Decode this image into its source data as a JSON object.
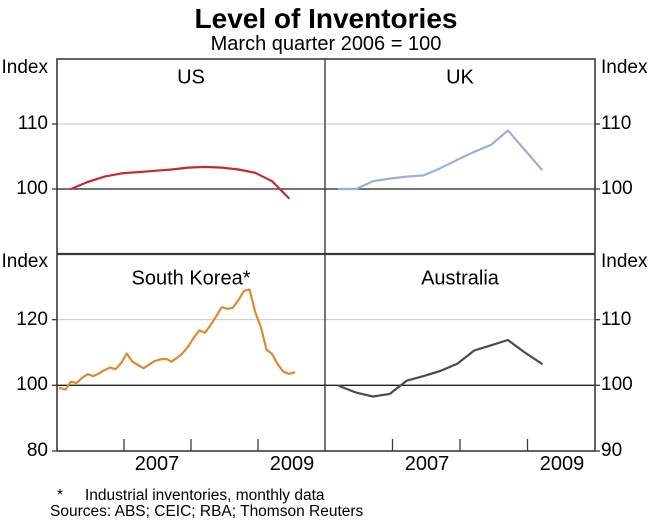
{
  "title": "Level of Inventories",
  "subtitle": "March quarter 2006 = 100",
  "axis_labels": {
    "index": "Index"
  },
  "left_axis": {
    "top": [
      "110",
      "100"
    ],
    "bottom": [
      "120",
      "100",
      "80"
    ]
  },
  "right_axis": {
    "top": [
      "110",
      "100"
    ],
    "bottom": [
      "110",
      "100",
      "90"
    ]
  },
  "x_axis": {
    "left": [
      "2007",
      "2009"
    ],
    "right": [
      "2007",
      "2009"
    ]
  },
  "footnote_marker": "*",
  "footnote": "Industrial inventories, monthly data",
  "sources": "Sources: ABS; CEIC; RBA; Thomson Reuters",
  "colors": {
    "frame": "#3a3a3a",
    "gridline_light": "#c8c8c8",
    "baseline": "#222222",
    "us_line": "#c02c31",
    "uk_line": "#a3abd9",
    "south_korea_line": "#de8a31",
    "australia_line": "#4b4b4b",
    "text": "#000000"
  },
  "chart_data": {
    "type": "line",
    "title": "Level of Inventories",
    "subtitle": "March quarter 2006 = 100",
    "layout": "2x2 panels, shared x axis 2006-2010, year ticks at 2007/2008/2009, gridlines light at upper tick, dark reference line at 100",
    "x_range": [
      2006,
      2010
    ],
    "x_year_ticks": [
      2007,
      2008,
      2009
    ],
    "panels": [
      {
        "name": "US",
        "row": 0,
        "col": 0,
        "ylim": [
          90,
          120
        ],
        "yticks": [
          110,
          100
        ],
        "gridlines_light": [
          110
        ],
        "baseline": 100,
        "axis_side": "left",
        "series": {
          "frequency": "quarterly",
          "color": "#c02c31",
          "x": [
            2006.21,
            2006.46,
            2006.71,
            2006.96,
            2007.21,
            2007.46,
            2007.71,
            2007.96,
            2008.21,
            2008.46,
            2008.71,
            2008.96,
            2009.21,
            2009.46
          ],
          "values": [
            100,
            101.1,
            101.9,
            102.4,
            102.6,
            102.8,
            103.0,
            103.3,
            103.4,
            103.3,
            103.0,
            102.5,
            101.2,
            98.6
          ]
        }
      },
      {
        "name": "UK",
        "row": 0,
        "col": 1,
        "ylim": [
          90,
          120
        ],
        "yticks": [
          110,
          100
        ],
        "gridlines_light": [
          110
        ],
        "baseline": 100,
        "axis_side": "right",
        "series": {
          "frequency": "quarterly",
          "color": "#a3abd9",
          "x": [
            2006.21,
            2006.46,
            2006.71,
            2006.96,
            2007.21,
            2007.46,
            2007.71,
            2007.96,
            2008.21,
            2008.46,
            2008.71,
            2008.96,
            2009.21
          ],
          "values": [
            100,
            100,
            101.2,
            101.6,
            101.9,
            102.1,
            103.2,
            104.5,
            105.7,
            106.8,
            109.0,
            106.0,
            103.0
          ]
        }
      },
      {
        "name": "South Korea*",
        "row": 1,
        "col": 0,
        "ylim": [
          80,
          140
        ],
        "yticks": [
          120,
          100,
          80
        ],
        "gridlines_light": [
          120
        ],
        "baseline": 100,
        "axis_side": "left",
        "series": {
          "frequency": "monthly",
          "color": "#de8a31",
          "x": [
            2006.042,
            2006.125,
            2006.208,
            2006.292,
            2006.375,
            2006.458,
            2006.542,
            2006.625,
            2006.708,
            2006.792,
            2006.875,
            2006.958,
            2007.042,
            2007.125,
            2007.208,
            2007.292,
            2007.375,
            2007.458,
            2007.542,
            2007.625,
            2007.708,
            2007.792,
            2007.875,
            2007.958,
            2008.042,
            2008.125,
            2008.208,
            2008.292,
            2008.375,
            2008.458,
            2008.542,
            2008.625,
            2008.708,
            2008.792,
            2008.875,
            2008.958,
            2009.042,
            2009.125,
            2009.208,
            2009.292,
            2009.375,
            2009.458,
            2009.542
          ],
          "values": [
            99.2,
            98.7,
            101.1,
            100.7,
            102.3,
            103.4,
            102.8,
            103.6,
            104.6,
            105.4,
            104.9,
            106.8,
            109.7,
            107.2,
            106.2,
            105.2,
            106.3,
            107.4,
            107.9,
            108.1,
            107.2,
            108.4,
            109.8,
            111.8,
            114.5,
            116.8,
            116.0,
            118.3,
            121.0,
            123.8,
            123.3,
            123.6,
            126.0,
            128.8,
            129.2,
            122.3,
            117.8,
            110.9,
            109.6,
            106.5,
            104.2,
            103.5,
            103.9
          ]
        }
      },
      {
        "name": "Australia",
        "row": 1,
        "col": 1,
        "ylim": [
          90,
          120
        ],
        "yticks": [
          110,
          100,
          90
        ],
        "gridlines_light": [
          110
        ],
        "baseline": 100,
        "axis_side": "right",
        "series": {
          "frequency": "quarterly",
          "color": "#4b4b4b",
          "x": [
            2006.21,
            2006.46,
            2006.71,
            2006.96,
            2007.21,
            2007.46,
            2007.71,
            2007.96,
            2008.21,
            2008.46,
            2008.71,
            2008.96,
            2009.21
          ],
          "values": [
            99.9,
            98.9,
            98.3,
            98.7,
            100.7,
            101.4,
            102.2,
            103.3,
            105.3,
            106.1,
            106.9,
            105.0,
            103.3
          ]
        }
      }
    ],
    "footnote": "* Industrial inventories, monthly data",
    "sources": "Sources: ABS; CEIC; RBA; Thomson Reuters"
  }
}
